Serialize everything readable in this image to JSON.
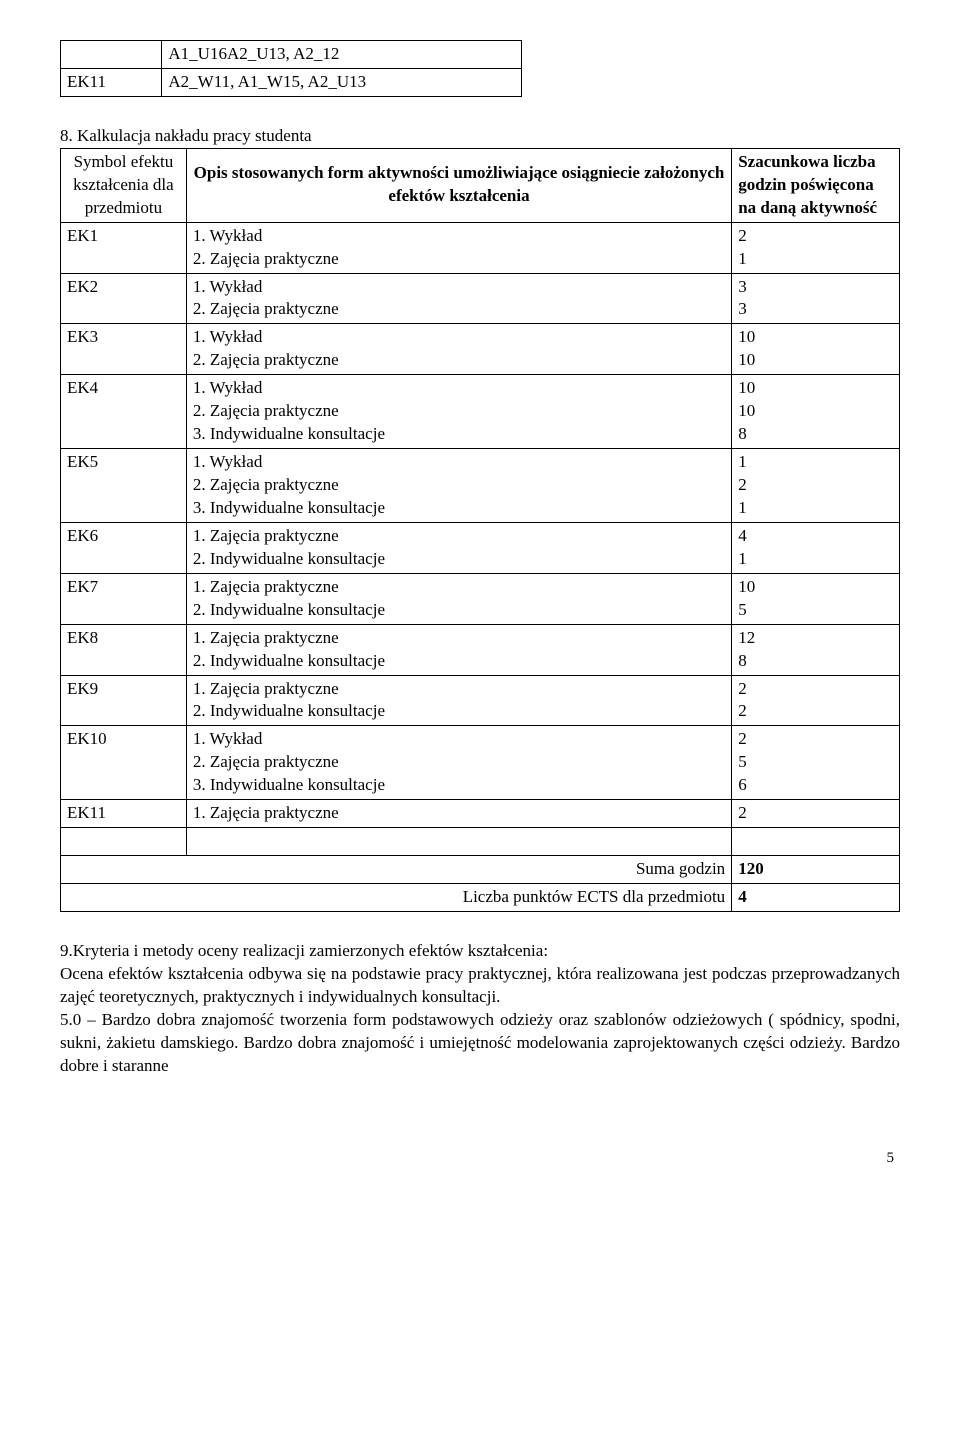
{
  "topTable": {
    "row1": {
      "c1": "",
      "c2": "A1_U16A2_U13, A2_12"
    },
    "row2": {
      "c1": "EK11",
      "c2": "A2_W11, A1_W15, A2_U13"
    }
  },
  "section8": "8. Kalkulacja nakładu pracy studenta",
  "mainHeader": {
    "c1": "Symbol efektu kształcenia dla przedmiotu",
    "c2": "Opis stosowanych form aktywności umożliwiające osiągniecie założonych efektów kształcenia",
    "c3": "Szacunkowa liczba godzin poświęcona na daną aktywność"
  },
  "rows": {
    "ek1": {
      "label": "EK1",
      "acts": "1.  Wykład\n2. Zajęcia praktyczne",
      "hrs": "2\n1"
    },
    "ek2": {
      "label": "EK2",
      "acts": "1. Wykład\n2. Zajęcia praktyczne",
      "hrs": "3\n3"
    },
    "ek3": {
      "label": "EK3",
      "acts": "1.  Wykład\n2. Zajęcia praktyczne",
      "hrs": "10\n10"
    },
    "ek4": {
      "label": "EK4",
      "acts": "1. Wykład\n2. Zajęcia praktyczne\n3. Indywidualne  konsultacje",
      "hrs": "10\n10\n8"
    },
    "ek5": {
      "label": "EK5",
      "acts": "1. Wykład\n2. Zajęcia praktyczne\n3. Indywidualne  konsultacje",
      "hrs": "1\n2\n1"
    },
    "ek6": {
      "label": "EK6",
      "acts": "1. Zajęcia praktyczne\n2. Indywidualne  konsultacje",
      "hrs": "4\n1"
    },
    "ek7": {
      "label": "EK7",
      "acts": "1. Zajęcia praktyczne\n2. Indywidualne  konsultacje",
      "hrs": "10\n5"
    },
    "ek8": {
      "label": "EK8",
      "acts": "1.  Zajęcia praktyczne\n2. Indywidualne  konsultacje",
      "hrs": "12\n8"
    },
    "ek9": {
      "label": "EK9",
      "acts": "1.  Zajęcia praktyczne\n2. Indywidualne  konsultacje",
      "hrs": "2\n2"
    },
    "ek10": {
      "label": "EK10",
      "acts": "1. Wykład\n2. Zajęcia praktyczne\n3. Indywidualne  konsultacje",
      "hrs": "2\n5\n6"
    },
    "ek11": {
      "label": "EK11",
      "acts": "1.  Zajęcia praktyczne",
      "hrs": "2"
    }
  },
  "sum": {
    "label1": "Suma godzin",
    "val1": "120",
    "label2": "Liczba punktów ECTS dla przedmiotu",
    "val2": "4"
  },
  "para": {
    "title": "9.Kryteria i metody oceny realizacji zamierzonych efektów kształcenia:",
    "p1": "Ocena efektów kształcenia odbywa się na podstawie pracy praktycznej, która realizowana jest podczas przeprowadzanych zajęć teoretycznych, praktycznych i indywidualnych konsultacji.",
    "p2": "5.0 – Bardzo dobra znajomość tworzenia form podstawowych odzieży oraz szablonów odzieżowych ( spódnicy, spodni, sukni, żakietu damskiego. Bardzo dobra znajomość i umiejętność modelowania zaprojektowanych części odzieży. Bardzo dobre i staranne"
  },
  "pageNum": "5"
}
